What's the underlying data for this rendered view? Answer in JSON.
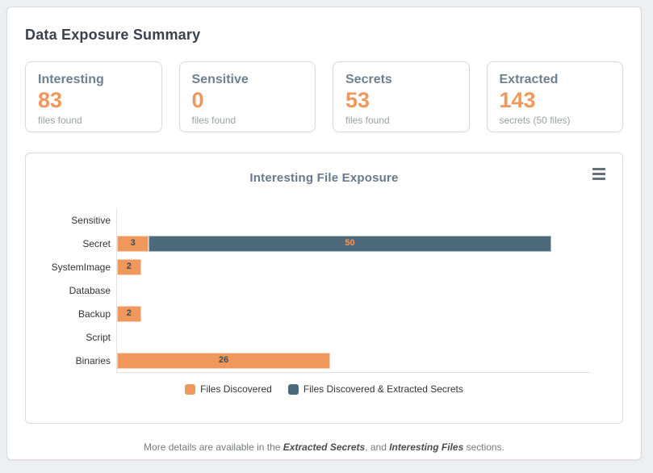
{
  "page": {
    "title": "Data Exposure Summary"
  },
  "stat_cards": [
    {
      "label": "Interesting",
      "value": "83",
      "sub": "files found"
    },
    {
      "label": "Sensitive",
      "value": "0",
      "sub": "files found"
    },
    {
      "label": "Secrets",
      "value": "53",
      "sub": "files found"
    },
    {
      "label": "Extracted",
      "value": "143",
      "sub": "secrets (50 files)"
    }
  ],
  "chart": {
    "title": "Interesting File Exposure",
    "menu_icon": "hamburger-menu-icon"
  },
  "chart_data": {
    "type": "bar",
    "orientation": "horizontal",
    "stacked": true,
    "title": "Interesting File Exposure",
    "categories": [
      "Sensitive",
      "Secret",
      "SystemImage",
      "Database",
      "Backup",
      "Script",
      "Binaries"
    ],
    "series": [
      {
        "name": "Files Discovered",
        "color": "#f0985c",
        "values": [
          0,
          3,
          2,
          0,
          2,
          0,
          26
        ]
      },
      {
        "name": "Files Discovered & Extracted Secrets",
        "color": "#4d6a7d",
        "values": [
          0,
          50,
          0,
          0,
          0,
          0,
          0
        ]
      }
    ],
    "xlim": [
      0,
      60
    ],
    "xlabel": "",
    "ylabel": "",
    "grid": false,
    "legend_position": "bottom",
    "data_label_color_on_orange": "#3e4c59",
    "data_label_color_on_dark": "#f0985c"
  },
  "footer": {
    "prefix": "More details are available in the ",
    "section1": "Extracted Secrets",
    "middle": ", and ",
    "section2": "Interesting Files",
    "suffix": " sections."
  },
  "colors": {
    "accent_orange": "#f0985c",
    "dark_slate": "#4d6a7d",
    "page_background": "#edf0f2",
    "heading": "#39414b",
    "card_label": "#6e7f8d",
    "muted_text": "#9b9fa3",
    "axis_line": "#e2e2e2"
  }
}
